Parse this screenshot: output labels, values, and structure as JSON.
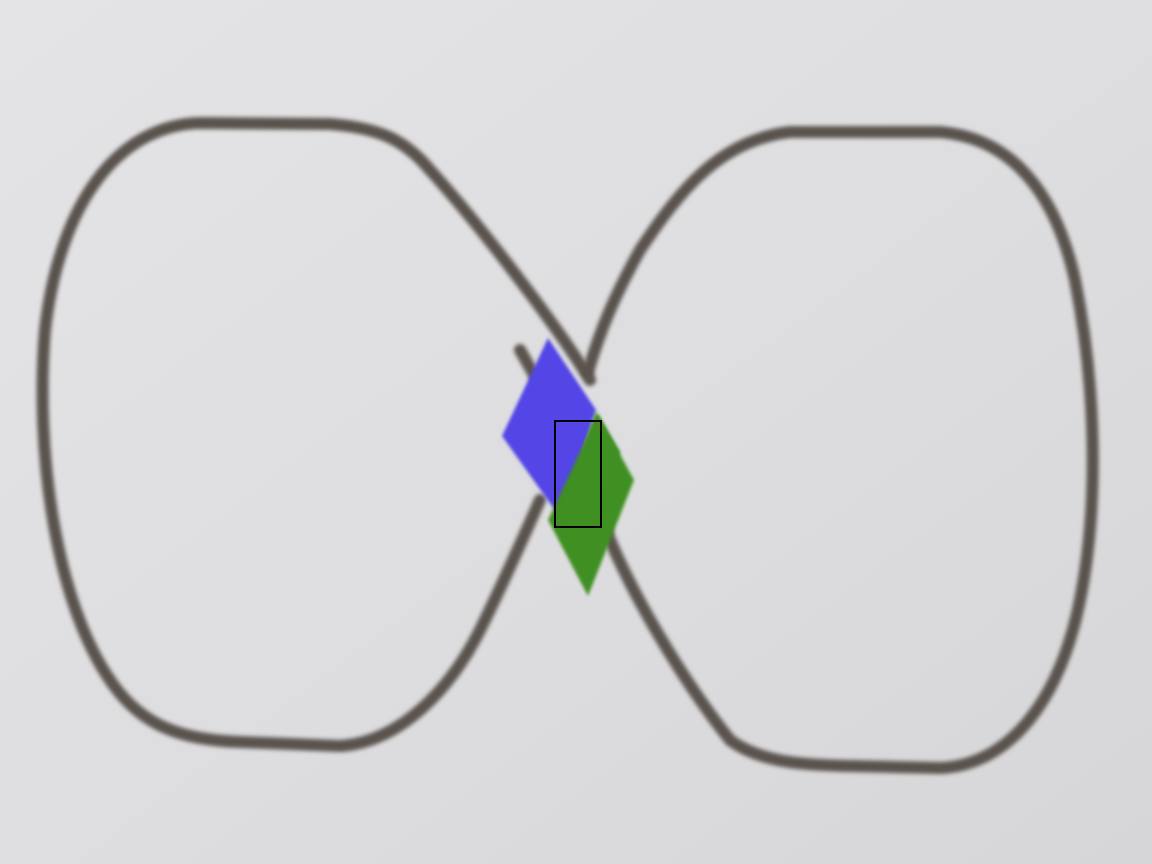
{
  "scene": {
    "background_color": "#dcdcde",
    "track": {
      "shape": "figure-eight",
      "color": "#5a524e"
    },
    "robot": {
      "front_color": "#5244e6",
      "rear_color": "#3f8f22",
      "marker_color": "#000000"
    }
  }
}
